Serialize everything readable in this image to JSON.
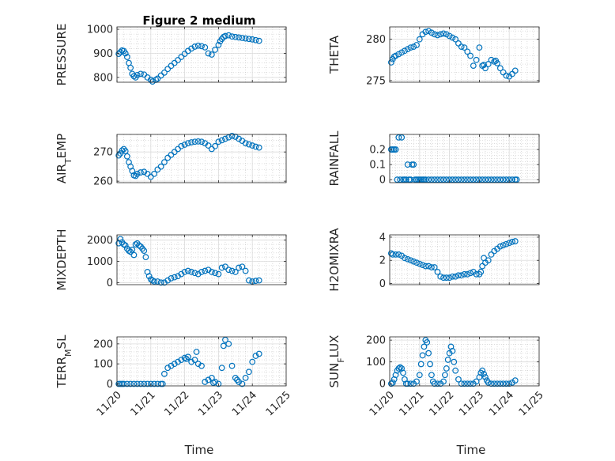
{
  "figure": {
    "title": "Figure 2 medium",
    "xlabel": "Time",
    "marker_color": "#0072BD"
  },
  "x_ticks": [
    "11/20",
    "11/21",
    "11/22",
    "11/23",
    "11/24",
    "11/25"
  ],
  "chart_data": [
    {
      "type": "scatter",
      "title": "Figure 2 medium",
      "ylabel": "PRESSURE",
      "xlabel": "",
      "xlim": [
        "11/20",
        "11/25"
      ],
      "ylim": [
        780,
        1010
      ],
      "yticks": [
        800,
        900,
        1000
      ],
      "grid": true,
      "x": [
        0.05,
        0.1,
        0.15,
        0.2,
        0.25,
        0.3,
        0.35,
        0.4,
        0.45,
        0.5,
        0.55,
        0.6,
        0.7,
        0.8,
        0.9,
        1.0,
        1.05,
        1.15,
        1.2,
        1.3,
        1.4,
        1.5,
        1.6,
        1.7,
        1.8,
        1.9,
        2.0,
        2.1,
        2.2,
        2.3,
        2.4,
        2.5,
        2.6,
        2.7,
        2.8,
        2.9,
        3.0,
        3.05,
        3.1,
        3.15,
        3.2,
        3.3,
        3.4,
        3.5,
        3.6,
        3.7,
        3.8,
        3.9,
        4.0,
        4.1,
        4.2
      ],
      "y": [
        898,
        905,
        912,
        910,
        900,
        885,
        860,
        840,
        815,
        805,
        800,
        810,
        815,
        812,
        800,
        790,
        783,
        790,
        795,
        808,
        820,
        835,
        848,
        860,
        872,
        885,
        898,
        910,
        920,
        928,
        932,
        930,
        925,
        900,
        895,
        915,
        935,
        950,
        960,
        968,
        972,
        975,
        970,
        968,
        966,
        964,
        962,
        960,
        958,
        955,
        952
      ]
    },
    {
      "type": "scatter",
      "title": "",
      "ylabel": "THETA",
      "xlabel": "",
      "xlim": [
        "11/20",
        "11/25"
      ],
      "ylim": [
        274.8,
        281.5
      ],
      "yticks": [
        275,
        280
      ],
      "grid": true,
      "x": [
        0.05,
        0.1,
        0.15,
        0.2,
        0.3,
        0.4,
        0.5,
        0.6,
        0.7,
        0.8,
        0.9,
        1.0,
        1.1,
        1.2,
        1.3,
        1.4,
        1.5,
        1.6,
        1.7,
        1.8,
        1.9,
        2.0,
        2.1,
        2.2,
        2.3,
        2.4,
        2.5,
        2.6,
        2.7,
        2.8,
        2.9,
        3.0,
        3.1,
        3.15,
        3.2,
        3.3,
        3.4,
        3.5,
        3.55,
        3.6,
        3.7,
        3.8,
        3.9,
        4.0,
        4.1,
        4.2
      ],
      "y": [
        277.2,
        277.6,
        277.9,
        278.0,
        278.2,
        278.4,
        278.6,
        278.8,
        279.0,
        279.1,
        279.3,
        280.0,
        280.6,
        280.9,
        281.0,
        280.8,
        280.6,
        280.5,
        280.6,
        280.7,
        280.6,
        280.4,
        280.2,
        280.0,
        279.5,
        279.1,
        279.0,
        278.5,
        278.0,
        276.8,
        277.5,
        279.0,
        276.8,
        276.9,
        276.5,
        277.0,
        277.5,
        277.3,
        277.4,
        277.1,
        276.5,
        276.0,
        275.6,
        275.5,
        275.8,
        276.2
      ]
    },
    {
      "type": "scatter",
      "title": "",
      "ylabel": "AIR_TEMP",
      "xlabel": "",
      "xlim": [
        "11/20",
        "11/25"
      ],
      "ylim": [
        259.5,
        276
      ],
      "yticks": [
        260,
        270
      ],
      "grid": true,
      "x": [
        0.05,
        0.1,
        0.15,
        0.2,
        0.25,
        0.3,
        0.35,
        0.4,
        0.45,
        0.5,
        0.55,
        0.6,
        0.7,
        0.8,
        0.9,
        1.0,
        1.1,
        1.2,
        1.3,
        1.4,
        1.5,
        1.6,
        1.7,
        1.8,
        1.9,
        2.0,
        2.1,
        2.2,
        2.3,
        2.4,
        2.5,
        2.6,
        2.7,
        2.8,
        2.9,
        3.0,
        3.1,
        3.2,
        3.3,
        3.4,
        3.5,
        3.6,
        3.7,
        3.8,
        3.9,
        4.0,
        4.1,
        4.2
      ],
      "y": [
        268.8,
        269.5,
        270.5,
        271.0,
        270.3,
        268.5,
        266.5,
        265.0,
        263.5,
        262.0,
        261.8,
        262.5,
        263.0,
        263.2,
        262.5,
        261.5,
        262.5,
        264.0,
        265.0,
        266.5,
        268.0,
        269.0,
        270.0,
        271.0,
        272.0,
        272.5,
        273.0,
        273.3,
        273.5,
        273.6,
        273.5,
        273.0,
        272.2,
        271.0,
        272.0,
        273.5,
        274.0,
        274.5,
        275.0,
        275.5,
        275.2,
        274.5,
        273.8,
        273.0,
        272.6,
        272.2,
        271.8,
        271.5
      ]
    },
    {
      "type": "scatter",
      "title": "",
      "ylabel": "RAINFALL",
      "xlabel": "",
      "xlim": [
        "11/20",
        "11/25"
      ],
      "ylim": [
        -0.02,
        0.3
      ],
      "yticks": [
        0,
        0.1,
        0.2
      ],
      "grid": true,
      "x": [
        0.05,
        0.1,
        0.15,
        0.2,
        0.25,
        0.3,
        0.35,
        0.4,
        0.45,
        0.5,
        0.55,
        0.6,
        0.65,
        0.7,
        0.75,
        0.8,
        0.85,
        0.9,
        0.95,
        1.0,
        1.05,
        1.1,
        1.15,
        1.2,
        1.3,
        1.4,
        1.5,
        1.6,
        1.7,
        1.8,
        1.9,
        2.0,
        2.1,
        2.2,
        2.3,
        2.4,
        2.5,
        2.6,
        2.7,
        2.8,
        2.9,
        3.0,
        3.1,
        3.2,
        3.3,
        3.4,
        3.5,
        3.6,
        3.7,
        3.8,
        3.9,
        4.0,
        4.1,
        4.2,
        4.25
      ],
      "y": [
        0.2,
        0.2,
        0.2,
        0.2,
        0.0,
        0.28,
        0.0,
        0.28,
        0.0,
        0.0,
        0.0,
        0.1,
        0.0,
        0.0,
        0.1,
        0.1,
        0.0,
        0.0,
        0.0,
        0.0,
        0.0,
        0.0,
        0.0,
        0.0,
        0.0,
        0.0,
        0.0,
        0.0,
        0.0,
        0.0,
        0.0,
        0.0,
        0.0,
        0.0,
        0.0,
        0.0,
        0.0,
        0.0,
        0.0,
        0.0,
        0.0,
        0.0,
        0.0,
        0.0,
        0.0,
        0.0,
        0.0,
        0.0,
        0.0,
        0.0,
        0.0,
        0.0,
        0.0,
        0.0,
        0.0
      ]
    },
    {
      "type": "scatter",
      "title": "",
      "ylabel": "MIXDEPTH",
      "xlabel": "",
      "xlim": [
        "11/20",
        "11/25"
      ],
      "ylim": [
        -100,
        2250
      ],
      "yticks": [
        0,
        1000,
        2000
      ],
      "grid": true,
      "x": [
        0.05,
        0.1,
        0.15,
        0.2,
        0.25,
        0.3,
        0.35,
        0.4,
        0.45,
        0.5,
        0.55,
        0.6,
        0.65,
        0.7,
        0.75,
        0.8,
        0.85,
        0.9,
        0.95,
        1.0,
        1.05,
        1.1,
        1.2,
        1.3,
        1.4,
        1.5,
        1.6,
        1.7,
        1.8,
        1.9,
        2.0,
        2.1,
        2.2,
        2.3,
        2.4,
        2.5,
        2.6,
        2.7,
        2.8,
        2.9,
        3.0,
        3.1,
        3.2,
        3.3,
        3.4,
        3.5,
        3.6,
        3.7,
        3.8,
        3.9,
        4.0,
        4.1,
        4.2
      ],
      "y": [
        1850,
        2050,
        1900,
        1800,
        1750,
        1600,
        1500,
        1450,
        1550,
        1300,
        1800,
        1850,
        1750,
        1700,
        1600,
        1500,
        1200,
        500,
        300,
        150,
        100,
        50,
        50,
        0,
        0,
        100,
        200,
        250,
        300,
        400,
        500,
        550,
        500,
        450,
        400,
        500,
        550,
        600,
        500,
        450,
        400,
        700,
        750,
        600,
        550,
        500,
        700,
        750,
        550,
        100,
        50,
        80,
        100
      ]
    },
    {
      "type": "scatter",
      "title": "",
      "ylabel": "H2OMIXRA",
      "xlabel": "",
      "xlim": [
        "11/20",
        "11/25"
      ],
      "ylim": [
        -0.1,
        4.2
      ],
      "yticks": [
        0,
        2,
        4
      ],
      "grid": true,
      "x": [
        0.05,
        0.1,
        0.2,
        0.3,
        0.4,
        0.5,
        0.6,
        0.7,
        0.8,
        0.9,
        1.0,
        1.1,
        1.2,
        1.3,
        1.4,
        1.5,
        1.6,
        1.7,
        1.8,
        1.9,
        2.0,
        2.1,
        2.2,
        2.3,
        2.4,
        2.5,
        2.6,
        2.7,
        2.8,
        2.9,
        3.0,
        3.05,
        3.1,
        3.15,
        3.2,
        3.3,
        3.4,
        3.5,
        3.6,
        3.7,
        3.8,
        3.9,
        4.0,
        4.1,
        4.2
      ],
      "y": [
        2.6,
        2.5,
        2.5,
        2.5,
        2.4,
        2.2,
        2.1,
        2.0,
        1.9,
        1.8,
        1.7,
        1.6,
        1.5,
        1.5,
        1.4,
        1.4,
        1.0,
        0.6,
        0.5,
        0.5,
        0.5,
        0.6,
        0.6,
        0.7,
        0.7,
        0.8,
        0.8,
        0.9,
        1.0,
        0.8,
        0.8,
        1.0,
        1.5,
        2.2,
        1.8,
        2.0,
        2.5,
        2.8,
        3.0,
        3.2,
        3.3,
        3.4,
        3.5,
        3.6,
        3.65
      ]
    },
    {
      "type": "scatter",
      "title": "",
      "ylabel": "TERR_MSL",
      "xlabel": "",
      "xlim": [
        "11/20",
        "11/25"
      ],
      "ylim": [
        -10,
        235
      ],
      "yticks": [
        0,
        100,
        200
      ],
      "grid": true,
      "x": [
        0.05,
        0.1,
        0.15,
        0.2,
        0.3,
        0.4,
        0.5,
        0.6,
        0.7,
        0.8,
        0.9,
        1.0,
        1.1,
        1.2,
        1.3,
        1.35,
        1.4,
        1.5,
        1.6,
        1.7,
        1.8,
        1.9,
        2.0,
        2.05,
        2.1,
        2.2,
        2.3,
        2.35,
        2.4,
        2.5,
        2.6,
        2.7,
        2.8,
        2.85,
        2.9,
        3.0,
        3.1,
        3.15,
        3.2,
        3.3,
        3.4,
        3.5,
        3.55,
        3.6,
        3.7,
        3.8,
        3.9,
        4.0,
        4.1,
        4.2
      ],
      "y": [
        0,
        0,
        0,
        0,
        0,
        0,
        0,
        0,
        0,
        0,
        0,
        0,
        0,
        0,
        0,
        0,
        50,
        80,
        90,
        100,
        110,
        120,
        130,
        125,
        135,
        110,
        120,
        160,
        100,
        90,
        10,
        20,
        30,
        5,
        10,
        0,
        80,
        190,
        220,
        200,
        90,
        30,
        20,
        10,
        0,
        30,
        60,
        110,
        140,
        150
      ]
    },
    {
      "type": "scatter",
      "title": "",
      "ylabel": "SUN_FLUX",
      "xlabel": "",
      "xlim": [
        "11/20",
        "11/25"
      ],
      "ylim": [
        -10,
        215
      ],
      "yticks": [
        0,
        100,
        200
      ],
      "grid": true,
      "x": [
        0.05,
        0.1,
        0.15,
        0.2,
        0.25,
        0.3,
        0.35,
        0.4,
        0.45,
        0.5,
        0.55,
        0.6,
        0.7,
        0.8,
        0.9,
        1.0,
        1.05,
        1.1,
        1.15,
        1.2,
        1.25,
        1.3,
        1.35,
        1.4,
        1.45,
        1.5,
        1.6,
        1.7,
        1.8,
        1.85,
        1.9,
        1.95,
        2.0,
        2.05,
        2.1,
        2.15,
        2.2,
        2.3,
        2.4,
        2.5,
        2.6,
        2.7,
        2.8,
        2.9,
        3.0,
        3.05,
        3.1,
        3.15,
        3.2,
        3.25,
        3.3,
        3.4,
        3.5,
        3.6,
        3.7,
        3.8,
        3.9,
        4.0,
        4.1,
        4.2
      ],
      "y": [
        0,
        5,
        20,
        40,
        60,
        70,
        75,
        70,
        50,
        20,
        0,
        0,
        0,
        0,
        10,
        40,
        90,
        130,
        170,
        200,
        190,
        140,
        90,
        40,
        10,
        0,
        0,
        0,
        10,
        40,
        70,
        110,
        140,
        170,
        150,
        100,
        60,
        20,
        0,
        0,
        0,
        0,
        0,
        10,
        30,
        50,
        60,
        45,
        30,
        15,
        5,
        0,
        0,
        0,
        0,
        0,
        0,
        0,
        5,
        15
      ]
    }
  ]
}
